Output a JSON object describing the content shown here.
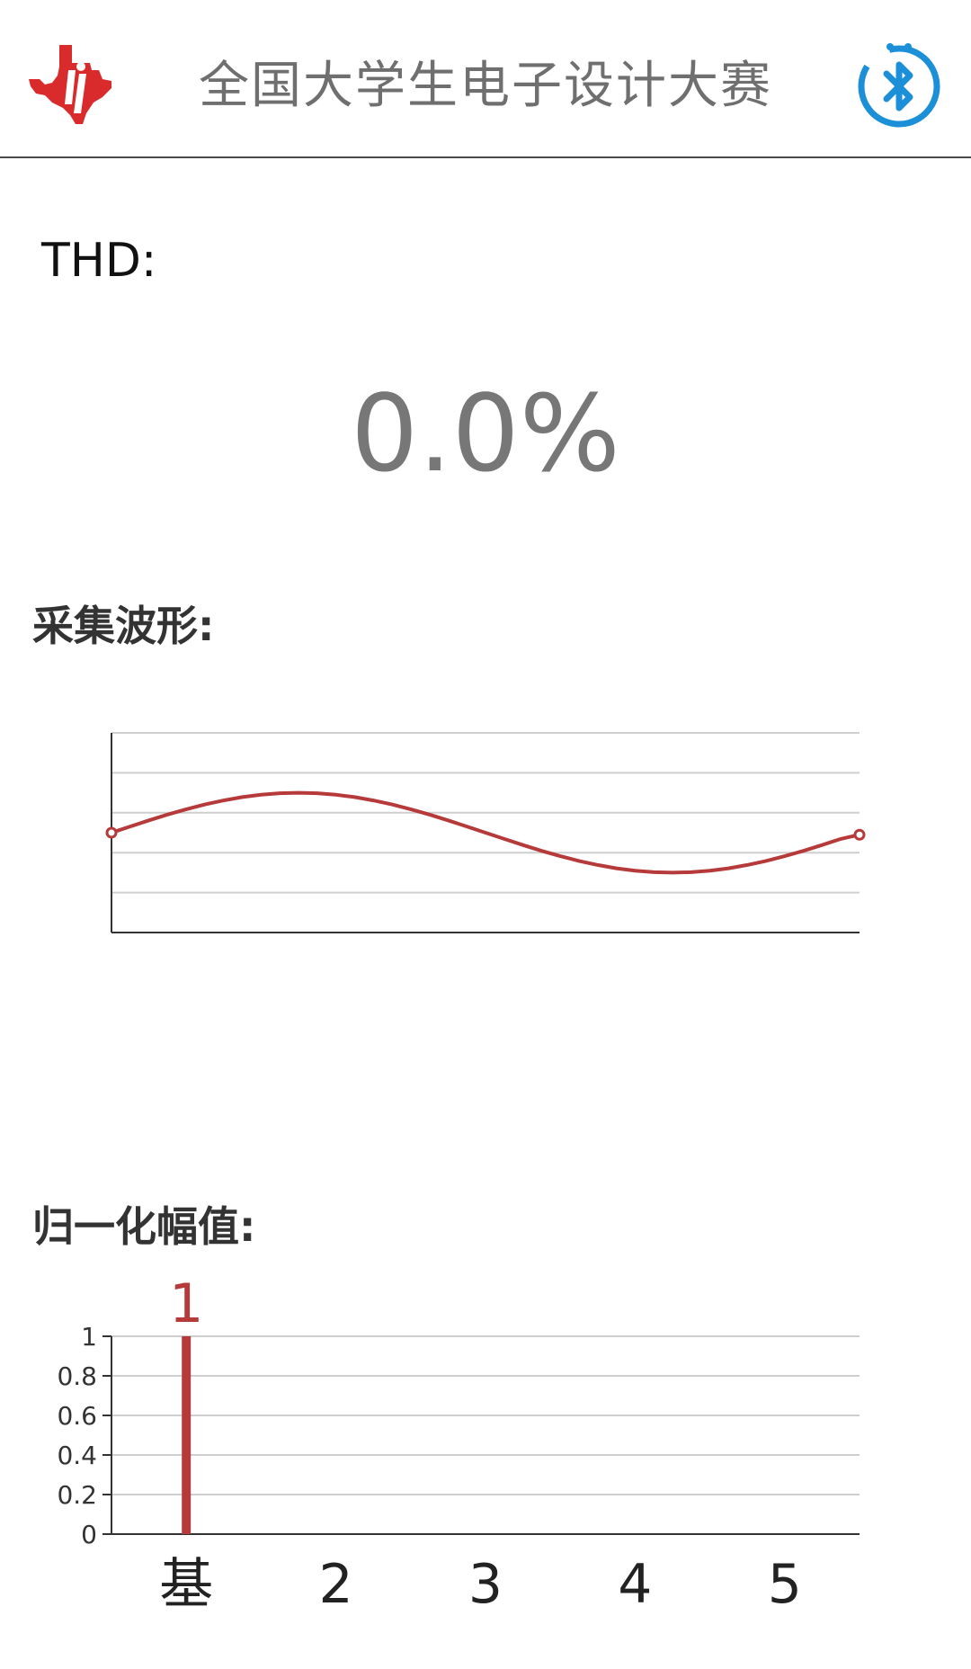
{
  "header": {
    "title": "全国大学生电子设计大赛",
    "logo_icon": "ti-logo-icon",
    "bluetooth_icon": "bluetooth-icon",
    "bluetooth_color": "#1b8fd8",
    "logo_color": "#d92b2b"
  },
  "thd": {
    "label": "THD:",
    "value": "0.0%"
  },
  "waveform": {
    "label": "采集波形:"
  },
  "harmonics": {
    "label": "归一化幅值:"
  },
  "chart_data": [
    {
      "type": "line",
      "x": [
        0,
        1,
        2,
        3,
        4,
        5,
        6,
        7,
        8,
        9,
        10,
        11,
        12,
        13,
        14,
        15,
        16,
        17,
        18,
        19,
        20,
        21,
        22,
        23,
        24,
        25,
        26,
        27,
        28,
        29,
        30,
        31,
        32,
        33,
        34,
        35,
        36,
        37,
        38,
        39,
        40
      ],
      "series": [
        {
          "values": [
            0.0,
            0.156,
            0.309,
            0.454,
            0.588,
            0.707,
            0.809,
            0.891,
            0.951,
            0.988,
            1.0,
            0.988,
            0.951,
            0.891,
            0.809,
            0.707,
            0.588,
            0.454,
            0.309,
            0.156,
            0.0,
            -0.156,
            -0.309,
            -0.454,
            -0.588,
            -0.707,
            -0.809,
            -0.891,
            -0.951,
            -0.988,
            -1.0,
            -0.988,
            -0.951,
            -0.891,
            -0.809,
            -0.707,
            -0.588,
            -0.454,
            -0.309,
            -0.156,
            -0.05
          ]
        }
      ],
      "ylim": [
        -2.5,
        2.5
      ],
      "grid": true,
      "color": "#b73a3a"
    },
    {
      "type": "bar",
      "categories": [
        "基",
        "2",
        "3",
        "4",
        "5"
      ],
      "values": [
        1,
        0,
        0,
        0,
        0
      ],
      "data_labels": [
        "1",
        "",
        "",
        "",
        ""
      ],
      "yticks": [
        "0",
        "0.2",
        "0.4",
        "0.6",
        "0.8",
        "1"
      ],
      "ylim": [
        0,
        1
      ],
      "grid": true,
      "color": "#b73a3a"
    }
  ]
}
